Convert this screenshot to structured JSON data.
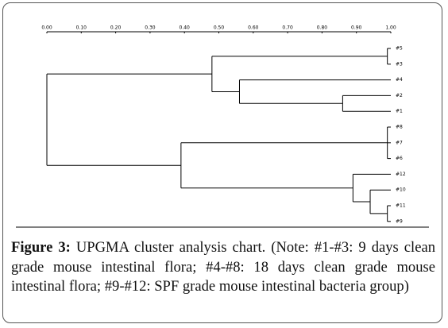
{
  "chart_data": {
    "type": "dendrogram",
    "xlim": [
      0,
      1
    ],
    "xticks": [
      {
        "value": 0,
        "label": "0.00"
      },
      {
        "value": 0.1,
        "label": "0.10"
      },
      {
        "value": 0.2,
        "label": "0.20"
      },
      {
        "value": 0.3,
        "label": "0.30"
      },
      {
        "value": 0.4,
        "label": "0.40"
      },
      {
        "value": 0.5,
        "label": "0.50"
      },
      {
        "value": 0.6,
        "label": "0.60"
      },
      {
        "value": 0.7,
        "label": "0.70"
      },
      {
        "value": 0.8,
        "label": "0.80"
      },
      {
        "value": 0.9,
        "label": "0.90"
      },
      {
        "value": 1,
        "label": "1.00"
      }
    ],
    "tree": {
      "height": 0,
      "children": [
        {
          "height": 0.48,
          "children": [
            {
              "height": 0.99,
              "children": [
                {
                  "label": "#5"
                },
                {
                  "label": "#3"
                }
              ]
            },
            {
              "height": 0.56,
              "children": [
                {
                  "label": "#4"
                },
                {
                  "height": 0.86,
                  "children": [
                    {
                      "label": "#2"
                    },
                    {
                      "label": "#1"
                    }
                  ]
                }
              ]
            }
          ]
        },
        {
          "height": 0.39,
          "children": [
            {
              "height": 0.99,
              "children": [
                {
                  "label": "#8"
                },
                {
                  "label": "#7"
                },
                {
                  "label": "#6"
                }
              ]
            },
            {
              "height": 0.89,
              "children": [
                {
                  "label": "#12"
                },
                {
                  "height": 0.94,
                  "children": [
                    {
                      "label": "#10"
                    },
                    {
                      "height": 0.99,
                      "children": [
                        {
                          "label": "#11"
                        },
                        {
                          "label": "#9"
                        }
                      ]
                    }
                  ]
                }
              ]
            }
          ]
        }
      ]
    }
  },
  "caption": {
    "label": "Figure 3:",
    "text": " UPGMA cluster analysis chart. (Note: #1-#3: 9 days clean grade mouse intestinal flora; #4-#8: 18 days clean grade mouse intestinal flora; #9-#12: SPF grade mouse intestinal bacteria group)"
  }
}
